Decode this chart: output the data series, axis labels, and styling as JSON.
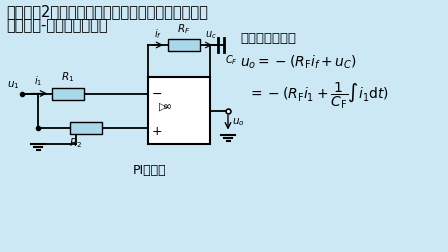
{
  "bg_color": "#cde8f5",
  "title_line1": "应用举例2：将比例运算和积分运算结合在一起，就",
  "title_line2": "组成比例-积分运算电路。",
  "label_pi": "PI调节器",
  "right_title": "电路的输出电压",
  "title_fontsize": 10.5,
  "body_fontsize": 10
}
